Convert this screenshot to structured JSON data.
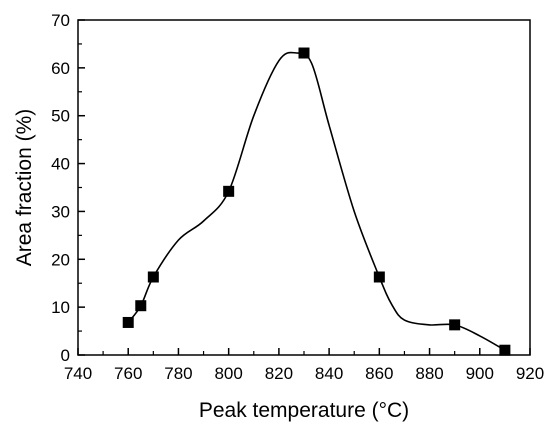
{
  "chart_data": {
    "type": "scatter",
    "title": "",
    "xlabel": "Peak temperature (°C)",
    "ylabel": "Area fraction (%)",
    "xlim": [
      740,
      920
    ],
    "ylim": [
      0,
      70
    ],
    "x_ticks": [
      740,
      760,
      780,
      800,
      820,
      840,
      860,
      880,
      900,
      920
    ],
    "y_ticks": [
      0,
      10,
      20,
      30,
      40,
      50,
      60,
      70
    ],
    "grid": false,
    "legend": "none",
    "marker": "square",
    "marker_color": "#000000",
    "line_style": "smooth fitted curve",
    "series": [
      {
        "x": [
          760,
          765,
          770,
          800,
          830,
          860,
          890,
          910
        ],
        "y": [
          6.8,
          10.3,
          16.3,
          34.2,
          63.1,
          16.3,
          6.3,
          1.0
        ]
      }
    ],
    "curve": {
      "x": [
        760,
        765,
        770,
        780,
        790,
        800,
        810,
        820,
        827,
        833,
        840,
        850,
        860,
        865,
        870,
        880,
        890,
        900,
        910
      ],
      "y": [
        6.8,
        10.3,
        16.3,
        24.0,
        28.0,
        34.2,
        50.0,
        61.5,
        63.1,
        61.0,
        48.0,
        30.0,
        16.3,
        10.5,
        7.3,
        6.3,
        6.3,
        4.0,
        1.0
      ]
    }
  }
}
